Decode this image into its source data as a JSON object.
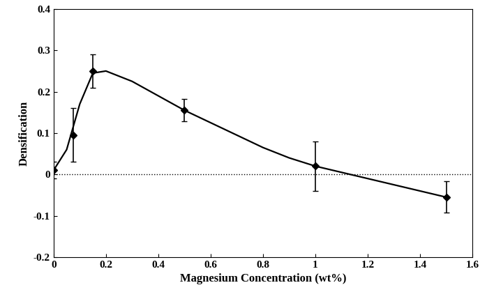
{
  "chart_data": {
    "type": "scatter",
    "x_label": "Magnesium Concentration (wt%)",
    "y_label": "Densification",
    "x": [
      0,
      0.075,
      0.15,
      0.5,
      1,
      1.5
    ],
    "values": [
      0.01,
      0.095,
      0.25,
      0.155,
      0.02,
      -0.055
    ],
    "errors": [
      0.02,
      0.065,
      0.04,
      0.027,
      0.06,
      0.038
    ],
    "curve": {
      "x": [
        0,
        0.05,
        0.1,
        0.15,
        0.2,
        0.3,
        0.4,
        0.5,
        0.6,
        0.7,
        0.8,
        0.9,
        1,
        1.1,
        1.2,
        1.3,
        1.4,
        1.5
      ],
      "values": [
        0.01,
        0.06,
        0.17,
        0.245,
        0.25,
        0.225,
        0.19,
        0.155,
        0.125,
        0.095,
        0.065,
        0.04,
        0.02,
        0.005,
        -0.01,
        -0.025,
        -0.04,
        -0.055
      ]
    },
    "zero_line": 0,
    "color": "#000000",
    "marker": "D",
    "grid": false,
    "xlim": [
      0,
      1.6
    ],
    "xticks": [
      0,
      0.2,
      0.4,
      0.6,
      0.8,
      1,
      1.2,
      1.4,
      1.6
    ],
    "ylim": [
      -0.2,
      0.4
    ],
    "yticks": [
      -0.2,
      -0.1,
      0,
      0.1,
      0.2,
      0.3,
      0.4
    ]
  }
}
